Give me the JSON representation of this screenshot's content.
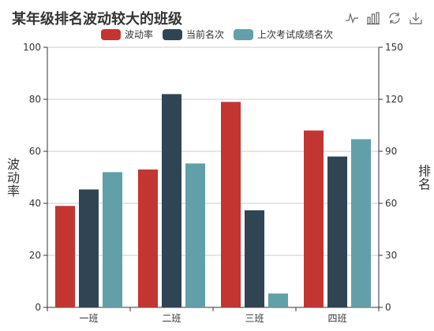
{
  "title": "某年级排名波动较大的班级",
  "toolbox": [
    {
      "name": "line-chart-icon"
    },
    {
      "name": "bar-chart-icon"
    },
    {
      "name": "restore-icon"
    },
    {
      "name": "download-icon"
    }
  ],
  "chart_data": {
    "type": "bar",
    "title": "某年级排名波动较大的班级",
    "categories": [
      "一班",
      "二班",
      "三班",
      "四班"
    ],
    "series": [
      {
        "name": "波动率",
        "axis": "left",
        "color": "#c23531",
        "values": [
          39,
          53,
          79,
          68
        ]
      },
      {
        "name": "当前名次",
        "axis": "right",
        "color": "#2f4554",
        "values": [
          68,
          123,
          56,
          87
        ]
      },
      {
        "name": "上次考试成绩名次",
        "axis": "right",
        "color": "#61a0a8",
        "values": [
          78,
          83,
          8,
          97
        ]
      }
    ],
    "y_left": {
      "label": "波动率",
      "min": 0,
      "max": 100,
      "ticks": [
        "0",
        "20",
        "40",
        "60",
        "80",
        "100"
      ]
    },
    "y_right": {
      "label": "排名",
      "min": 0,
      "max": 150,
      "ticks": [
        "0",
        "30",
        "60",
        "90",
        "120",
        "150"
      ]
    },
    "grid": true,
    "legend_position": "top-center"
  }
}
